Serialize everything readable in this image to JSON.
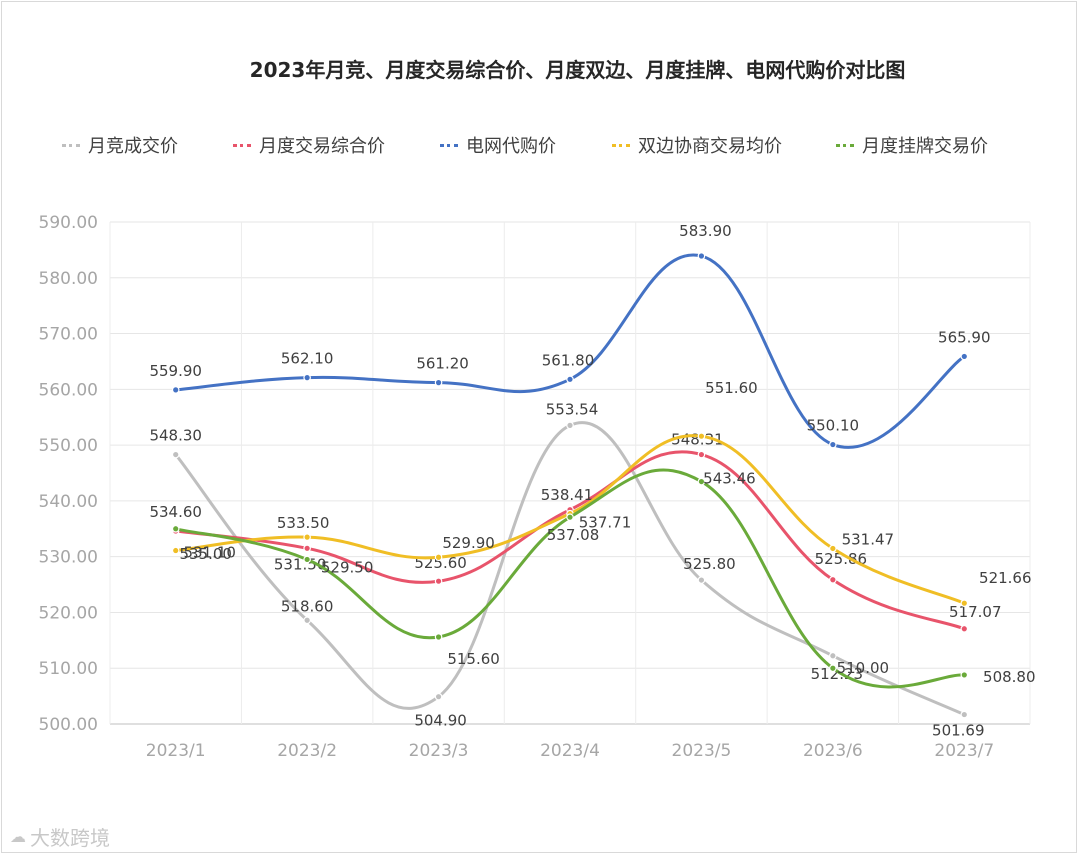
{
  "chart_data": {
    "type": "line",
    "title": "2023年月竞、月度交易综合价、月度双边、月度挂牌、电网代购价对比图",
    "categories": [
      "2023/1",
      "2023/2",
      "2023/3",
      "2023/4",
      "2023/5",
      "2023/6",
      "2023/7"
    ],
    "ylim": [
      500,
      590
    ],
    "ytick_labels": [
      "500.00",
      "510.00",
      "520.00",
      "530.00",
      "540.00",
      "550.00",
      "560.00",
      "570.00",
      "580.00",
      "590.00"
    ],
    "grid": true,
    "legend_position": "top",
    "series": [
      {
        "name": "月竞成交价",
        "color": "#bfbfbf",
        "values": [
          548.3,
          518.6,
          504.9,
          553.54,
          525.8,
          512.23,
          501.69
        ],
        "labels": [
          "548.30",
          "518.60",
          "504.90",
          "553.54",
          "525.80",
          "512.23",
          "501.69"
        ]
      },
      {
        "name": "月度交易综合价",
        "color": "#e8546b",
        "values": [
          534.6,
          531.5,
          525.6,
          538.41,
          548.31,
          525.86,
          517.07
        ],
        "labels": [
          "534.60",
          "531.50",
          "525.60",
          "538.41",
          "548.31",
          "525.86",
          "517.07"
        ]
      },
      {
        "name": "电网代购价",
        "color": "#4472c4",
        "values": [
          559.9,
          562.1,
          561.2,
          561.8,
          583.9,
          550.1,
          565.9
        ],
        "labels": [
          "559.90",
          "562.10",
          "561.20",
          "561.80",
          "583.90",
          "550.10",
          "565.90"
        ]
      },
      {
        "name": "双边协商交易均价",
        "color": "#f0be25",
        "values": [
          531.1,
          533.5,
          529.9,
          537.71,
          551.6,
          531.47,
          521.66
        ],
        "labels": [
          "531.10",
          "533.50",
          "529.90",
          "537.71",
          "551.60",
          "531.47",
          "521.66"
        ]
      },
      {
        "name": "月度挂牌交易价",
        "color": "#6aaa3a",
        "values": [
          535.0,
          529.5,
          515.6,
          537.08,
          543.46,
          510.0,
          508.8
        ],
        "labels": [
          "535.00",
          "529.50",
          "515.60",
          "537.08",
          "543.46",
          "510.00",
          "508.80"
        ]
      }
    ]
  },
  "watermark": {
    "icon": "cloud-logo-icon",
    "text": "大数跨境"
  }
}
